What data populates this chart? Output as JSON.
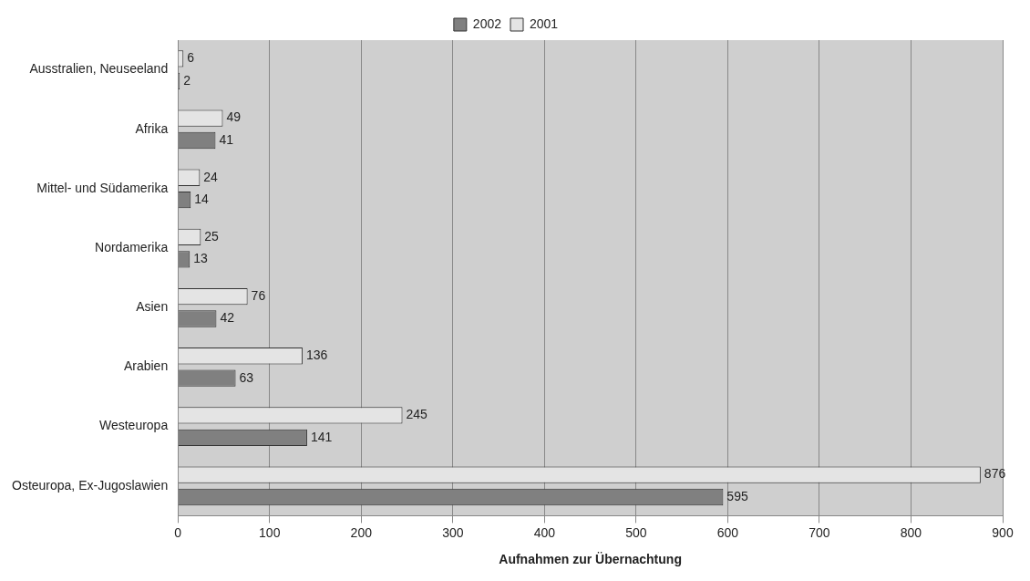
{
  "chart_data": {
    "type": "bar",
    "orientation": "horizontal",
    "xlabel": "Aufnahmen zur Übernachtung",
    "categories": [
      "Ausstralien, Neuseeland",
      "Afrika",
      "Mittel- und Südamerika",
      "Nordamerika",
      "Asien",
      "Arabien",
      "Westeuropa",
      "Osteuropa, Ex-Jugoslawien"
    ],
    "series": [
      {
        "name": "2002",
        "color": "#808080",
        "values": [
          2,
          41,
          14,
          13,
          42,
          63,
          141,
          595
        ]
      },
      {
        "name": "2001",
        "color": "#e4e4e4",
        "values": [
          6,
          49,
          24,
          25,
          76,
          136,
          245,
          876
        ]
      }
    ],
    "xlim": [
      0,
      900
    ],
    "xticks": [
      0,
      100,
      200,
      300,
      400,
      500,
      600,
      700,
      800,
      900
    ],
    "grid": "x",
    "legend": "top",
    "data_labels": true
  }
}
